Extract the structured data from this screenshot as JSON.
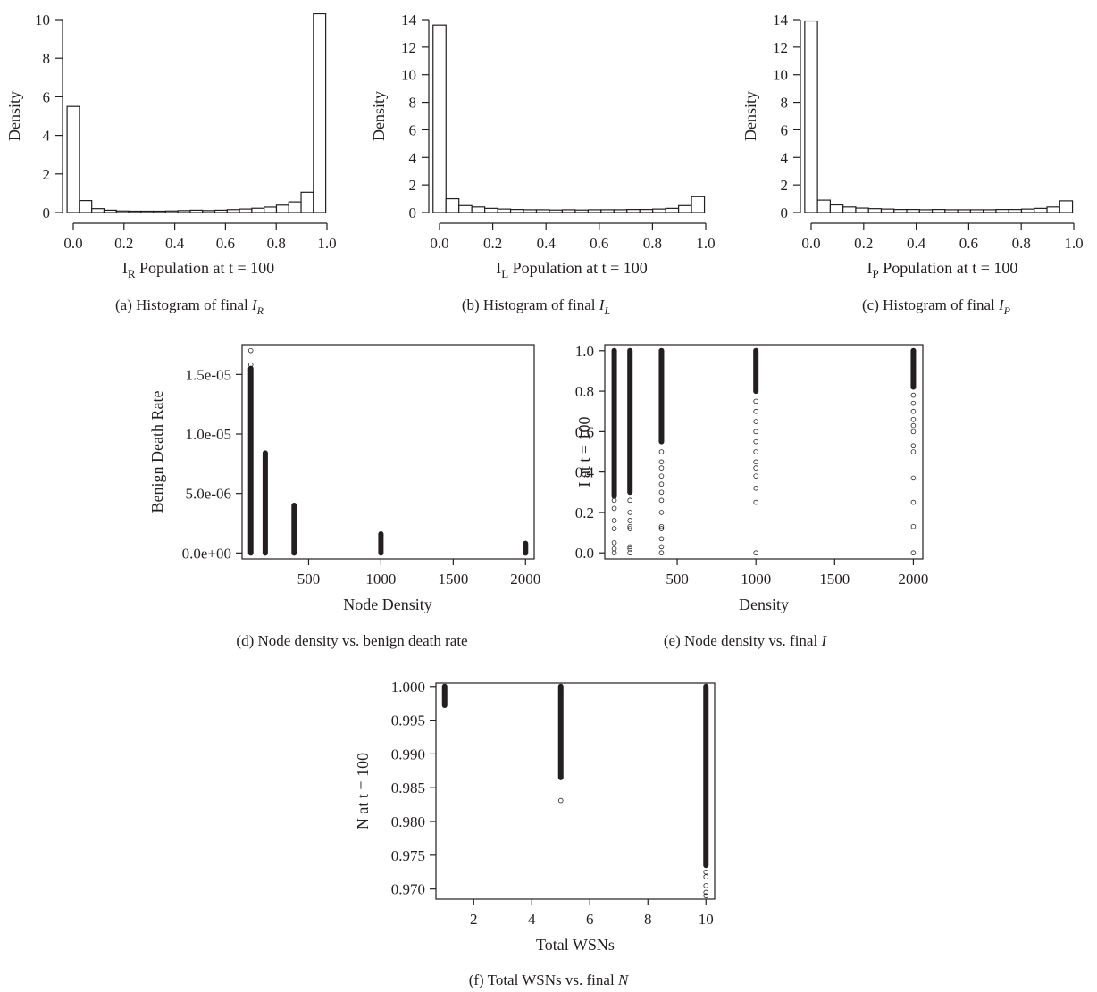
{
  "figure": {
    "panels": [
      {
        "id": "a",
        "caption_prefix": "(a)  Histogram of final ",
        "caption_var": "I",
        "caption_sub": "R",
        "xlabel_main": "I",
        "xlabel_sub": "R",
        "xlabel_rest": " Population at t = 100",
        "ylabel": "Density"
      },
      {
        "id": "b",
        "caption_prefix": "(b)  Histogram of final ",
        "caption_var": "I",
        "caption_sub": "L",
        "xlabel_main": "I",
        "xlabel_sub": "L",
        "xlabel_rest": " Population at t = 100",
        "ylabel": "Density"
      },
      {
        "id": "c",
        "caption_prefix": "(c)  Histogram of final ",
        "caption_var": "I",
        "caption_sub": "P",
        "xlabel_main": "I",
        "xlabel_sub": "P",
        "xlabel_rest": " Population at t = 100",
        "ylabel": "Density"
      },
      {
        "id": "d",
        "caption_prefix": "(d)  Node density vs. benign death rate",
        "caption_var": "",
        "caption_sub": "",
        "xlabel_main": "Node Density",
        "xlabel_sub": "",
        "xlabel_rest": "",
        "ylabel": "Benign Death Rate"
      },
      {
        "id": "e",
        "caption_prefix": "(e)  Node density vs. final ",
        "caption_var": "I",
        "caption_sub": "",
        "xlabel_main": "Density",
        "xlabel_sub": "",
        "xlabel_rest": "",
        "ylabel": "I at t = 100"
      },
      {
        "id": "f",
        "caption_prefix": "(f)  Total WSNs vs. final ",
        "caption_var": "N",
        "caption_sub": "",
        "xlabel_main": "Total WSNs",
        "xlabel_sub": "",
        "xlabel_rest": "",
        "ylabel": "N at t = 100"
      }
    ]
  },
  "chart_data": [
    {
      "type": "bar",
      "subtype": "histogram",
      "bin_edges": [
        0.0,
        0.05,
        0.1,
        0.15,
        0.2,
        0.25,
        0.3,
        0.35,
        0.4,
        0.45,
        0.5,
        0.55,
        0.6,
        0.65,
        0.7,
        0.75,
        0.8,
        0.85,
        0.9,
        0.95,
        1.0
      ],
      "values": [
        5.5,
        0.62,
        0.2,
        0.12,
        0.08,
        0.07,
        0.07,
        0.07,
        0.08,
        0.1,
        0.12,
        0.1,
        0.12,
        0.15,
        0.18,
        0.22,
        0.28,
        0.38,
        0.55,
        1.05,
        10.3
      ],
      "xlabel": "I_R Population at t = 100",
      "ylabel": "Density",
      "xlim": [
        0,
        1
      ],
      "ylim": [
        0,
        10
      ],
      "xticks": [
        "0.0",
        "0.2",
        "0.4",
        "0.6",
        "0.8",
        "1.0"
      ],
      "yticks": [
        "0",
        "2",
        "4",
        "6",
        "8",
        "10"
      ]
    },
    {
      "type": "bar",
      "subtype": "histogram",
      "bin_edges": [
        0.0,
        0.05,
        0.1,
        0.15,
        0.2,
        0.25,
        0.3,
        0.35,
        0.4,
        0.45,
        0.5,
        0.55,
        0.6,
        0.65,
        0.7,
        0.75,
        0.8,
        0.85,
        0.9,
        0.95,
        1.0
      ],
      "values": [
        13.6,
        1.0,
        0.5,
        0.4,
        0.3,
        0.25,
        0.22,
        0.2,
        0.2,
        0.18,
        0.2,
        0.18,
        0.2,
        0.2,
        0.2,
        0.22,
        0.22,
        0.25,
        0.3,
        0.5,
        1.15
      ],
      "xlabel": "I_L Population at t = 100",
      "ylabel": "Density",
      "xlim": [
        0,
        1
      ],
      "ylim": [
        0,
        14
      ],
      "xticks": [
        "0.0",
        "0.2",
        "0.4",
        "0.6",
        "0.8",
        "1.0"
      ],
      "yticks": [
        "0",
        "2",
        "4",
        "6",
        "8",
        "10",
        "12",
        "14"
      ]
    },
    {
      "type": "bar",
      "subtype": "histogram",
      "bin_edges": [
        0.0,
        0.05,
        0.1,
        0.15,
        0.2,
        0.25,
        0.3,
        0.35,
        0.4,
        0.45,
        0.5,
        0.55,
        0.6,
        0.65,
        0.7,
        0.75,
        0.8,
        0.85,
        0.9,
        0.95,
        1.0
      ],
      "values": [
        13.9,
        0.9,
        0.55,
        0.4,
        0.32,
        0.28,
        0.25,
        0.22,
        0.22,
        0.2,
        0.22,
        0.2,
        0.2,
        0.2,
        0.2,
        0.22,
        0.22,
        0.25,
        0.3,
        0.4,
        0.85
      ],
      "xlabel": "I_P Population at t = 100",
      "ylabel": "Density",
      "xlim": [
        0,
        1
      ],
      "ylim": [
        0,
        14
      ],
      "xticks": [
        "0.0",
        "0.2",
        "0.4",
        "0.6",
        "0.8",
        "1.0"
      ],
      "yticks": [
        "0",
        "2",
        "4",
        "6",
        "8",
        "10",
        "12",
        "14"
      ]
    },
    {
      "type": "scatter",
      "columns": [
        {
          "x": 100,
          "ymin": 0.0,
          "ymax": 1.55e-05,
          "outliers": [
            1.58e-05,
            1.7e-05
          ]
        },
        {
          "x": 200,
          "ymin": 0.0,
          "ymax": 8.4e-06,
          "outliers": []
        },
        {
          "x": 400,
          "ymin": 0.0,
          "ymax": 4e-06,
          "outliers": []
        },
        {
          "x": 1000,
          "ymin": 0.0,
          "ymax": 1.6e-06,
          "outliers": []
        },
        {
          "x": 2000,
          "ymin": 0.0,
          "ymax": 8e-07,
          "outliers": []
        }
      ],
      "xlabel": "Node Density",
      "ylabel": "Benign Death Rate",
      "xlim": [
        40,
        2060
      ],
      "ylim": [
        -5e-07,
        1.75e-05
      ],
      "xticks": [
        500,
        1000,
        1500,
        2000
      ],
      "yticks": [
        {
          "value": 0.0,
          "label": "0.0e+00"
        },
        {
          "value": 5e-06,
          "label": "5.0e-06"
        },
        {
          "value": 1e-05,
          "label": "1.0e-05"
        },
        {
          "value": 1.5e-05,
          "label": "1.5e-05"
        }
      ]
    },
    {
      "type": "scatter",
      "columns": [
        {
          "x": 100,
          "ymin": 0.28,
          "ymax": 1.0,
          "outliers": [
            0.0,
            0.02,
            0.05,
            0.12,
            0.16,
            0.22,
            0.26
          ]
        },
        {
          "x": 200,
          "ymin": 0.3,
          "ymax": 1.0,
          "outliers": [
            0.0,
            0.02,
            0.03,
            0.12,
            0.13,
            0.16,
            0.2,
            0.26
          ]
        },
        {
          "x": 400,
          "ymin": 0.55,
          "ymax": 1.0,
          "outliers": [
            0.0,
            0.03,
            0.07,
            0.12,
            0.13,
            0.2,
            0.26,
            0.3,
            0.34,
            0.38,
            0.42,
            0.45,
            0.5
          ]
        },
        {
          "x": 1000,
          "ymin": 0.8,
          "ymax": 1.0,
          "outliers": [
            0.0,
            0.25,
            0.32,
            0.38,
            0.42,
            0.45,
            0.5,
            0.55,
            0.6,
            0.65,
            0.7,
            0.75
          ]
        },
        {
          "x": 2000,
          "ymin": 0.82,
          "ymax": 1.0,
          "outliers": [
            0.0,
            0.13,
            0.25,
            0.37,
            0.5,
            0.53,
            0.6,
            0.63,
            0.66,
            0.7,
            0.74,
            0.78
          ]
        }
      ],
      "xlabel": "Density",
      "ylabel": "I at t = 100",
      "xlim": [
        40,
        2060
      ],
      "ylim": [
        -0.03,
        1.03
      ],
      "xticks": [
        500,
        1000,
        1500,
        2000
      ],
      "yticks": [
        {
          "value": 0.0,
          "label": "0.0"
        },
        {
          "value": 0.2,
          "label": "0.2"
        },
        {
          "value": 0.4,
          "label": "0.4"
        },
        {
          "value": 0.6,
          "label": "0.6"
        },
        {
          "value": 0.8,
          "label": "0.8"
        },
        {
          "value": 1.0,
          "label": "1.0"
        }
      ]
    },
    {
      "type": "scatter",
      "columns": [
        {
          "x": 1,
          "ymin": 0.9972,
          "ymax": 1.0,
          "outliers": []
        },
        {
          "x": 5,
          "ymin": 0.9865,
          "ymax": 1.0,
          "outliers": [
            0.9831
          ]
        },
        {
          "x": 10,
          "ymin": 0.9735,
          "ymax": 1.0,
          "outliers": [
            0.9725,
            0.9718,
            0.9705,
            0.9695,
            0.969
          ]
        }
      ],
      "xlabel": "Total WSNs",
      "ylabel": "N at t = 100",
      "xlim": [
        0.7,
        10.3
      ],
      "ylim": [
        0.9685,
        1.0005
      ],
      "xticks": [
        2,
        4,
        6,
        8,
        10
      ],
      "yticks": [
        {
          "value": 0.97,
          "label": "0.970"
        },
        {
          "value": 0.975,
          "label": "0.975"
        },
        {
          "value": 0.98,
          "label": "0.980"
        },
        {
          "value": 0.985,
          "label": "0.985"
        },
        {
          "value": 0.99,
          "label": "0.990"
        },
        {
          "value": 0.995,
          "label": "0.995"
        },
        {
          "value": 1.0,
          "label": "1.000"
        }
      ]
    }
  ]
}
